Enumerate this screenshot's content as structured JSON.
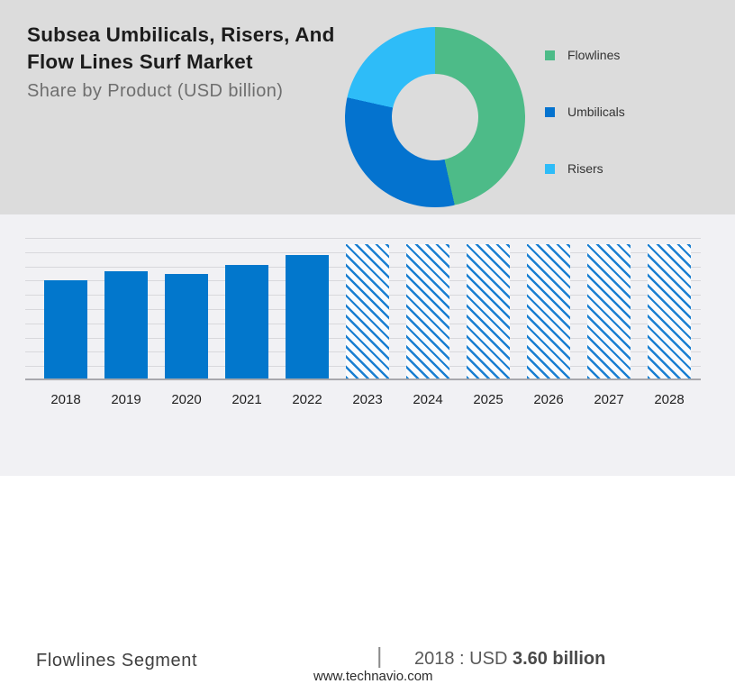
{
  "header": {
    "title_line1": "Subsea Umbilicals, Risers, And",
    "title_line2": "Flow Lines Surf Market",
    "subtitle": "Share by Product (USD billion)"
  },
  "colors": {
    "top_background": "#dcdcdc",
    "bottom_background": "#f1f1f4",
    "flowlines_green": "#4dbb88",
    "umbilicals_blue": "#0473cf",
    "risers_light_blue": "#2ebcf8",
    "bar_blue": "#0277cc",
    "gridline": "#d8d8dc",
    "axis_line": "#a8a8ad"
  },
  "chart_data": [
    {
      "type": "pie",
      "donut": true,
      "title": "Share by Product (USD billion)",
      "legend_position": "right",
      "segments": [
        {
          "label": "Flowlines",
          "share_pct": 46.5,
          "color": "#4dbb88"
        },
        {
          "label": "Umbilicals",
          "share_pct": 32.0,
          "color": "#0473cf"
        },
        {
          "label": "Risers",
          "share_pct": 21.5,
          "color": "#2ebcf8"
        }
      ]
    },
    {
      "type": "bar",
      "categories": [
        "2018",
        "2019",
        "2020",
        "2021",
        "2022",
        "2023",
        "2024",
        "2025",
        "2026",
        "2027",
        "2028"
      ],
      "values": [
        3.6,
        3.93,
        3.83,
        4.16,
        4.52,
        4.92,
        4.92,
        4.92,
        4.92,
        4.92,
        4.92
      ],
      "unit": "USD billion",
      "forecast_from": "2023",
      "forecast_style": "hatched",
      "ylim": [
        0,
        5.2
      ],
      "grid": true,
      "xlabel": "",
      "ylabel": "",
      "bar_color": "#0277cc"
    }
  ],
  "footer": {
    "segment_label": "Flowlines Segment",
    "separator": "|",
    "kpi_prefix": "2018 : USD",
    "kpi_value": "3.60 billion",
    "website": "www.technavio.com"
  }
}
